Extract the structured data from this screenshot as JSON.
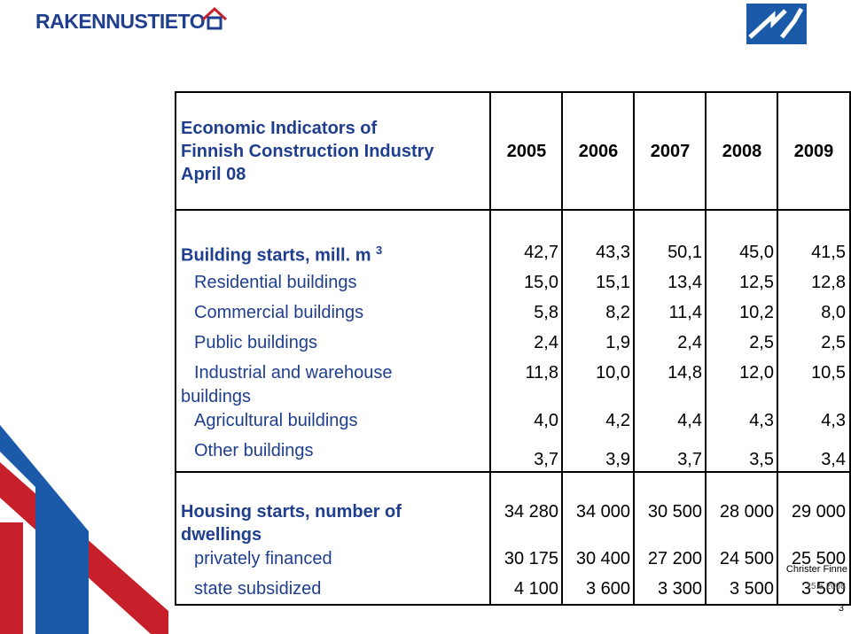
{
  "brand": {
    "name": "RAKENNUSTIETO"
  },
  "table": {
    "title_lines": [
      "Economic Indicators of",
      "Finnish Construction Industry",
      "April 08"
    ],
    "years": [
      "2005",
      "2006",
      "2007",
      "2008",
      "2009"
    ],
    "building_starts": {
      "label": "Building starts, mill. m",
      "sup": "3",
      "values": [
        "42,7",
        "43,3",
        "50,1",
        "45,0",
        "41,5"
      ],
      "rows": [
        {
          "label": "Residential buildings",
          "values": [
            "15,0",
            "15,1",
            "13,4",
            "12,5",
            "12,8"
          ]
        },
        {
          "label": "Commercial buildings",
          "values": [
            "5,8",
            "8,2",
            "11,4",
            "10,2",
            "8,0"
          ]
        },
        {
          "label": "Public buildings",
          "values": [
            "2,4",
            "1,9",
            "2,4",
            "2,5",
            "2,5"
          ]
        },
        {
          "label": "Industrial and warehouse",
          "label2": "buildings",
          "values": [
            "11,8",
            "10,0",
            "14,8",
            "12,0",
            "10,5"
          ]
        },
        {
          "label": "Agricultural buildings",
          "values": [
            "4,0",
            "4,2",
            "4,4",
            "4,3",
            "4,3"
          ]
        },
        {
          "label": "Other buildings",
          "values": [
            "3,7",
            "3,9",
            "3,7",
            "3,5",
            "3,4"
          ]
        }
      ]
    },
    "housing_starts": {
      "label": "Housing starts, number of",
      "label2": "dwellings",
      "values": [
        "34 280",
        "34 000",
        "30 500",
        "28 000",
        "29 000"
      ],
      "rows": [
        {
          "label": "privately financed",
          "values": [
            "30 175",
            "30 400",
            "27 200",
            "24 500",
            "25 500"
          ]
        },
        {
          "label": "state subsidized",
          "values": [
            "4 100",
            "3 600",
            "3 300",
            "3 500",
            "3 500"
          ]
        }
      ]
    }
  },
  "footer": {
    "author": "Christer Finne",
    "date": "15.5.2008",
    "page": "3"
  },
  "colors": {
    "brand_blue": "#1f3e8e",
    "roof_red": "#c8202a",
    "logo_blue": "#1a5aa8"
  }
}
